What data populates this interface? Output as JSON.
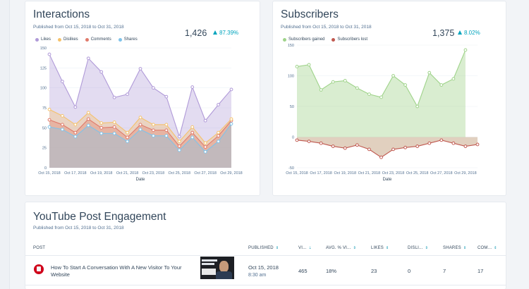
{
  "interactions": {
    "title": "Interactions",
    "subtitle": "Published from Oct 15, 2018 to Oct 31, 2018",
    "total": "1,426",
    "change": "87.39%",
    "legend": [
      "Likes",
      "Dislikes",
      "Comments",
      "Shares"
    ]
  },
  "subscribers": {
    "title": "Subscribers",
    "subtitle": "Published from Oct 15, 2018 to Oct 31, 2018",
    "total": "1,375",
    "change": "8.02%",
    "legend": [
      "Subscribers gained",
      "Subscribers lost"
    ]
  },
  "youtube": {
    "title": "YouTube Post Engagement",
    "subtitle": "Published from Oct 15, 2018 to Oct 31, 2018",
    "columns": [
      "POST",
      "PUBLISHED",
      "VI...",
      "AVG. % VI...",
      "LIKES",
      "DISLI...",
      "SHARES",
      "COM..."
    ],
    "row": {
      "title": "How To Start A Conversation With A New Visitor To Your Website",
      "published_date": "Oct 15, 2018",
      "published_time": "8:30 am",
      "views": "465",
      "avg_pct": "18%",
      "likes": "23",
      "dislikes": "0",
      "shares": "7",
      "comments": "17"
    }
  },
  "colors": {
    "likes": "#b09ad8",
    "dislikes": "#f5c26b",
    "comments": "#e07a6b",
    "shares": "#7fc3ea",
    "gained": "#9fd38a",
    "lost": "#c0584f",
    "accent": "#00a4bd"
  },
  "chart_data": [
    {
      "type": "area",
      "title": "Interactions",
      "xlabel": "Date",
      "ylabel": "",
      "ylim": [
        0,
        150
      ],
      "yticks": [
        0,
        25,
        50,
        75,
        100,
        125,
        150
      ],
      "grid": true,
      "legend_position": "top-left",
      "x": [
        "Oct 15, 2018",
        "Oct 16, 2018",
        "Oct 17, 2018",
        "Oct 18, 2018",
        "Oct 19, 2018",
        "Oct 20, 2018",
        "Oct 21, 2018",
        "Oct 22, 2018",
        "Oct 23, 2018",
        "Oct 24, 2018",
        "Oct 25, 2018",
        "Oct 26, 2018",
        "Oct 27, 2018",
        "Oct 28, 2018",
        "Oct 29, 2018"
      ],
      "xtick_labels": [
        "Oct 15, 2018",
        "Oct 17, 2018",
        "Oct 19, 2018",
        "Oct 21, 2018",
        "Oct 23, 2018",
        "Oct 25, 2018",
        "Oct 27, 2018",
        "Oct 29, 2018"
      ],
      "stacked": true,
      "series": [
        {
          "name": "Shares",
          "values": [
            51,
            48,
            39,
            53,
            43,
            43,
            33,
            48,
            40,
            40,
            22,
            38,
            20,
            33,
            55
          ]
        },
        {
          "name": "Comments",
          "values": [
            9,
            6,
            5,
            8,
            7,
            8,
            5,
            6,
            7,
            7,
            5,
            6,
            6,
            7,
            4
          ]
        },
        {
          "name": "Dislikes",
          "values": [
            13,
            11,
            10,
            8,
            6,
            6,
            6,
            9,
            7,
            7,
            6,
            7,
            5,
            4,
            2
          ]
        },
        {
          "name": "Likes",
          "values": [
            69,
            43,
            22,
            68,
            64,
            31,
            48,
            61,
            46,
            35,
            6,
            50,
            28,
            35,
            37
          ]
        }
      ]
    },
    {
      "type": "area",
      "title": "Subscribers",
      "xlabel": "Date",
      "ylabel": "",
      "ylim": [
        -50,
        150
      ],
      "yticks": [
        -50,
        0,
        50,
        100,
        150
      ],
      "grid": true,
      "legend_position": "top-left",
      "x": [
        "Oct 15, 2018",
        "Oct 16, 2018",
        "Oct 17, 2018",
        "Oct 18, 2018",
        "Oct 19, 2018",
        "Oct 20, 2018",
        "Oct 21, 2018",
        "Oct 22, 2018",
        "Oct 23, 2018",
        "Oct 24, 2018",
        "Oct 25, 2018",
        "Oct 26, 2018",
        "Oct 27, 2018",
        "Oct 28, 2018",
        "Oct 29, 2018",
        "Oct 30, 2018"
      ],
      "xtick_labels": [
        "Oct 15, 2018",
        "Oct 17, 2018",
        "Oct 19, 2018",
        "Oct 21, 2018",
        "Oct 23, 2018",
        "Oct 25, 2018",
        "Oct 27, 2018",
        "Oct 29, 2018"
      ],
      "series": [
        {
          "name": "Subscribers gained",
          "values": [
            115,
            118,
            77,
            90,
            92,
            80,
            70,
            65,
            100,
            85,
            50,
            105,
            85,
            95,
            142,
            null
          ]
        },
        {
          "name": "Subscribers lost",
          "values": [
            -5,
            -7,
            -10,
            -15,
            -18,
            -13,
            -20,
            -33,
            -20,
            -17,
            -15,
            -10,
            -5,
            -10,
            -15,
            -12
          ]
        }
      ]
    }
  ]
}
